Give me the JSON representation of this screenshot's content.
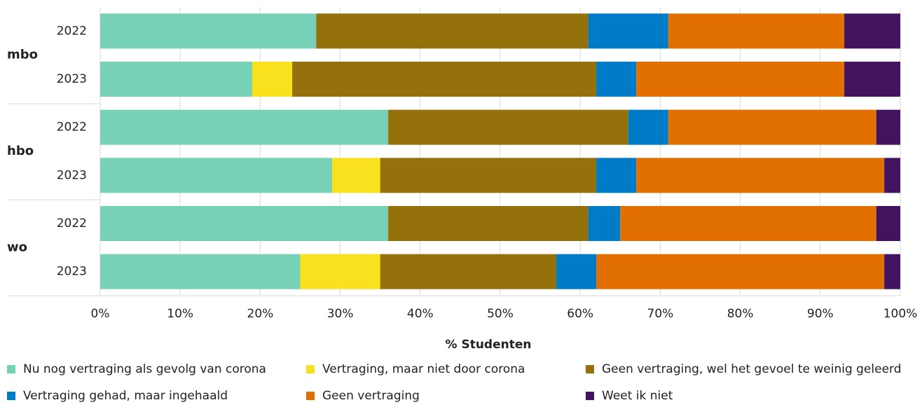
{
  "chart_data": {
    "type": "stacked_barh",
    "xlabel": "% Studenten",
    "groups": [
      "mbo",
      "hbo",
      "wo"
    ],
    "categories": [
      "2022",
      "2023",
      "2022",
      "2023",
      "2022",
      "2023"
    ],
    "series": [
      {
        "name": "Nu nog vertraging als gevolg van corona",
        "color": "#76d1b6",
        "values": [
          27,
          19,
          36,
          29,
          36,
          25
        ]
      },
      {
        "name": "Vertraging, maar niet door corona",
        "color": "#f9e11e",
        "values": [
          0,
          5,
          0,
          6,
          0,
          10
        ]
      },
      {
        "name": "Geen vertraging, wel het gevoel te weinig geleerd",
        "color": "#94710a",
        "values": [
          34,
          38,
          30,
          27,
          25,
          22
        ]
      },
      {
        "name": "Vertraging gehad, maar ingehaald",
        "color": "#007bc7",
        "values": [
          10,
          5,
          5,
          5,
          4,
          5
        ]
      },
      {
        "name": "Geen vertraging",
        "color": "#e17000",
        "values": [
          22,
          26,
          26,
          31,
          32,
          36
        ]
      },
      {
        "name": "Weet ik niet",
        "color": "#42145f",
        "values": [
          7,
          7,
          3,
          2,
          3,
          2
        ]
      }
    ],
    "xlim": [
      0,
      100
    ],
    "xticks": [
      {
        "value": 0,
        "label": "0%"
      },
      {
        "value": 10,
        "label": "10%"
      },
      {
        "value": 20,
        "label": "20%"
      },
      {
        "value": 30,
        "label": "30%"
      },
      {
        "value": 40,
        "label": "40%"
      },
      {
        "value": 50,
        "label": "50%"
      },
      {
        "value": 60,
        "label": "60%"
      },
      {
        "value": 70,
        "label": "70%"
      },
      {
        "value": 80,
        "label": "80%"
      },
      {
        "value": 90,
        "label": "90%"
      },
      {
        "value": 100,
        "label": "100%"
      }
    ],
    "grid": true
  }
}
